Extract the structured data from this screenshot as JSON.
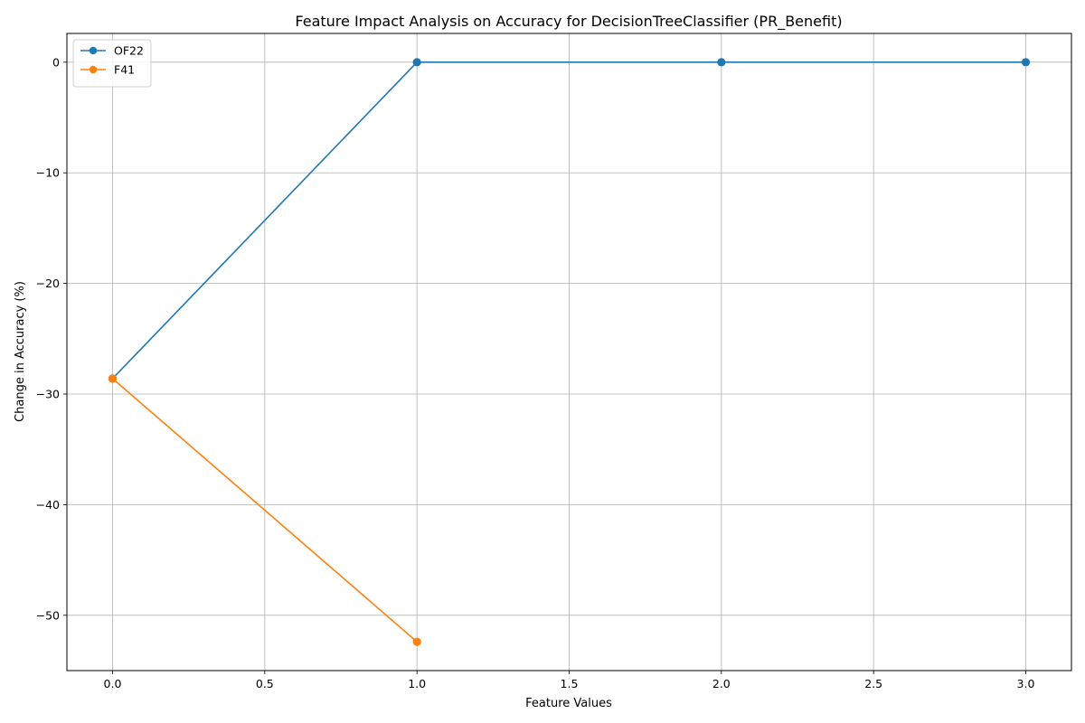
{
  "chart_data": {
    "type": "line",
    "title": "Feature Impact Analysis on Accuracy for DecisionTreeClassifier (PR_Benefit)",
    "xlabel": "Feature Values",
    "ylabel": "Change in Accuracy (%)",
    "xlim": [
      -0.15,
      3.15
    ],
    "ylim": [
      -55,
      2.6
    ],
    "xticks": [
      0.0,
      0.5,
      1.0,
      1.5,
      2.0,
      2.5,
      3.0
    ],
    "xtick_labels": [
      "0.0",
      "0.5",
      "1.0",
      "1.5",
      "2.0",
      "2.5",
      "3.0"
    ],
    "yticks": [
      0,
      -10,
      -20,
      -30,
      -40,
      -50
    ],
    "ytick_labels": [
      "0",
      "−10",
      "−20",
      "−30",
      "−40",
      "−50"
    ],
    "grid": true,
    "legend_position": "top-left",
    "series": [
      {
        "name": "OF22",
        "color": "#1f77b4",
        "x": [
          0,
          1,
          2,
          3
        ],
        "y": [
          -28.6,
          0,
          0,
          0
        ]
      },
      {
        "name": "F41",
        "color": "#ff7f0e",
        "x": [
          0,
          1
        ],
        "y": [
          -28.6,
          -52.4
        ]
      }
    ]
  }
}
